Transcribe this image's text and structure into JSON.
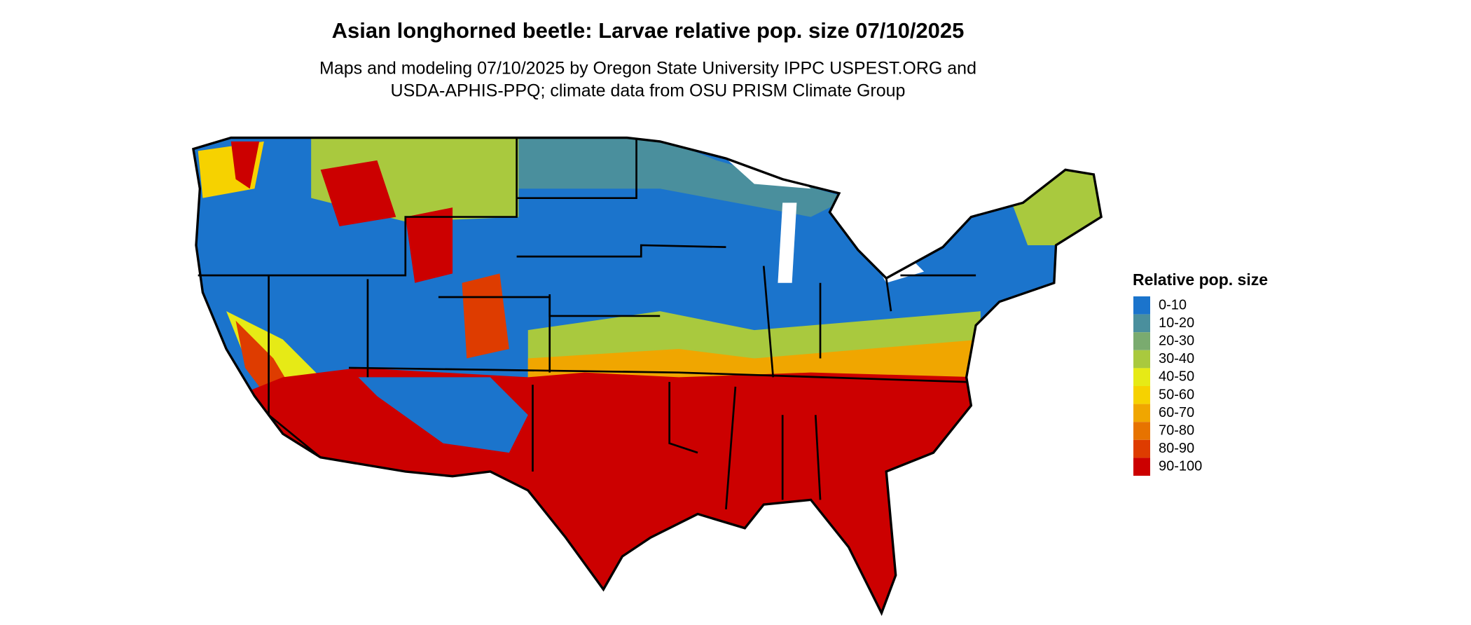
{
  "title": "Asian longhorned beetle: Larvae relative pop. size 07/10/2025",
  "subtitle": [
    "Maps and modeling 07/10/2025 by Oregon State University IPPC USPEST.ORG and",
    "USDA-APHIS-PPQ; climate data from OSU PRISM Climate Group"
  ],
  "legend": {
    "title": "Relative pop. size",
    "items": [
      {
        "label": "0-10",
        "color": "#1b74cc"
      },
      {
        "label": "10-20",
        "color": "#4a8f9d"
      },
      {
        "label": "20-30",
        "color": "#7aab6f"
      },
      {
        "label": "30-40",
        "color": "#a9c93e"
      },
      {
        "label": "40-50",
        "color": "#e6ea16"
      },
      {
        "label": "50-60",
        "color": "#f6d200"
      },
      {
        "label": "60-70",
        "color": "#f0a600"
      },
      {
        "label": "70-80",
        "color": "#e77300"
      },
      {
        "label": "80-90",
        "color": "#de3c00"
      },
      {
        "label": "90-100",
        "color": "#cc0000"
      }
    ]
  }
}
